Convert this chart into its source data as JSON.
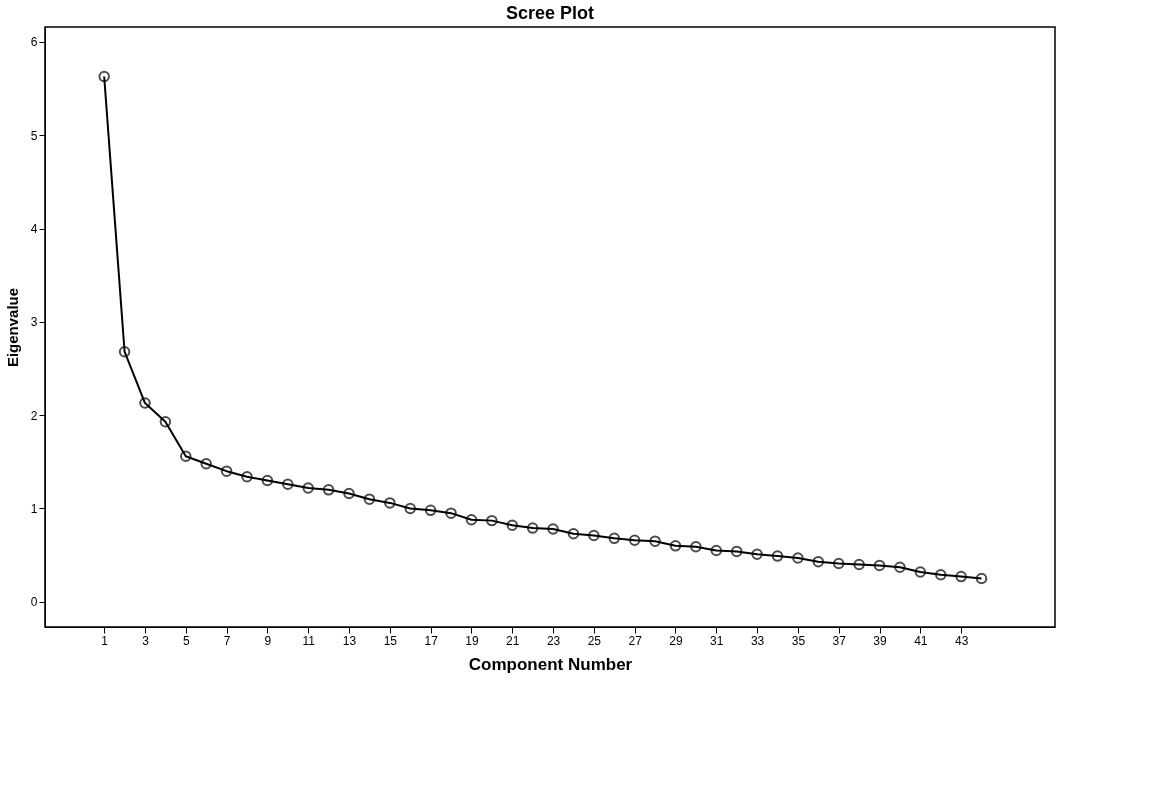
{
  "chart_data": {
    "type": "line",
    "title": "Scree Plot",
    "xlabel": "Component Number",
    "ylabel": "Eigenvalue",
    "x": [
      1,
      2,
      3,
      4,
      5,
      6,
      7,
      8,
      9,
      10,
      11,
      12,
      13,
      14,
      15,
      16,
      17,
      18,
      19,
      20,
      21,
      22,
      23,
      24,
      25,
      26,
      27,
      28,
      29,
      30,
      31,
      32,
      33,
      34,
      35,
      36,
      37,
      38,
      39,
      40,
      41,
      42,
      43,
      44
    ],
    "series": [
      {
        "color": "#000000",
        "values": [
          5.63,
          2.68,
          2.13,
          1.93,
          1.56,
          1.48,
          1.4,
          1.34,
          1.3,
          1.26,
          1.22,
          1.2,
          1.16,
          1.1,
          1.06,
          1.0,
          0.98,
          0.95,
          0.88,
          0.87,
          0.82,
          0.79,
          0.78,
          0.73,
          0.71,
          0.68,
          0.66,
          0.65,
          0.6,
          0.59,
          0.55,
          0.54,
          0.51,
          0.49,
          0.47,
          0.43,
          0.41,
          0.4,
          0.39,
          0.37,
          0.32,
          0.29,
          0.27,
          0.25
        ]
      }
    ],
    "xlim": [
      -1.9,
      47.6
    ],
    "xticks": [
      1,
      3,
      5,
      7,
      9,
      11,
      13,
      15,
      17,
      19,
      21,
      23,
      25,
      27,
      29,
      31,
      33,
      35,
      37,
      39,
      41,
      43
    ],
    "ylim": [
      -0.27,
      6.16
    ],
    "yticks": [
      0,
      1,
      2,
      3,
      4,
      5,
      6
    ],
    "marker": "circle",
    "line_style": "solid",
    "grid": false,
    "legend": false
  }
}
